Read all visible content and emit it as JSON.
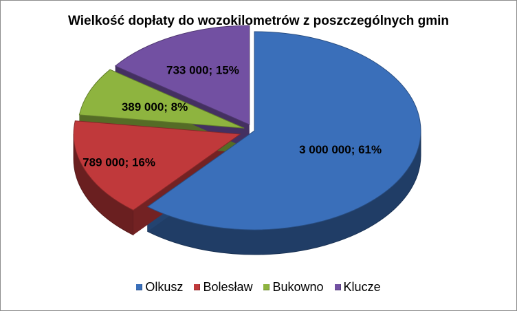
{
  "chart_data": {
    "type": "pie",
    "style": "3d",
    "title": "Wielkość dopłaty do wozokilometrów z poszczególnych gmin",
    "legend_position": "bottom",
    "slices": [
      {
        "label": "Olkusz",
        "value": 3000000,
        "percent": 61,
        "data_label": "3 000 000; 61%",
        "color": "#3a6fba"
      },
      {
        "label": "Bolesław",
        "value": 789000,
        "percent": 16,
        "data_label": "789 000; 16%",
        "color": "#c0393b"
      },
      {
        "label": "Bukowno",
        "value": 389000,
        "percent": 8,
        "data_label": "389 000; 8%",
        "color": "#8eb43f"
      },
      {
        "label": "Klucze",
        "value": 733000,
        "percent": 15,
        "data_label": "733 000; 15%",
        "color": "#7250a2"
      }
    ]
  }
}
